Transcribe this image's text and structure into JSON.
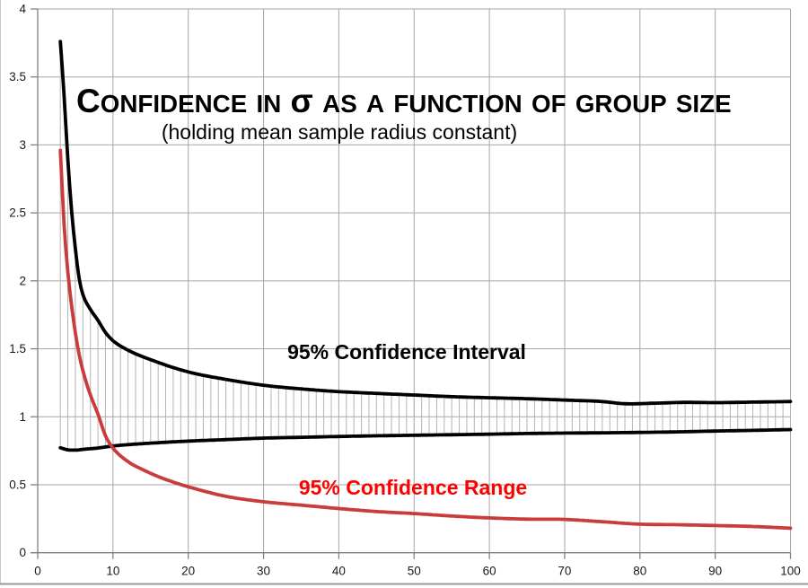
{
  "title": {
    "text": "Confidence in σ as a function of group size",
    "subtitle": "(holding mean sample radius constant)"
  },
  "annotations": {
    "interval_label": "95% Confidence Interval",
    "range_label": "95% Confidence Range"
  },
  "colors": {
    "background": "#ffffff",
    "curve_black": "#000000",
    "curve_red": "#c83c3c",
    "label_red": "#fe0000",
    "grid": "#a6a6a6",
    "axis": "#808080",
    "hatch": "#b5b5b5",
    "tick_text": "#1a1a1a",
    "frame": "#999999"
  },
  "chart_data": {
    "type": "line",
    "title": "Confidence in σ as a function of group size",
    "subtitle": "(holding mean sample radius constant)",
    "xlabel": "",
    "ylabel": "",
    "xlim": [
      0,
      100
    ],
    "ylim": [
      0,
      4
    ],
    "grid": true,
    "legend_position": "inline-labels",
    "x_ticks": [
      0,
      10,
      20,
      30,
      40,
      50,
      60,
      70,
      80,
      90,
      100
    ],
    "x_tick_labels": [
      "0",
      "10",
      "20",
      "30",
      "40",
      "50",
      "60",
      "70",
      "80",
      "90",
      "100"
    ],
    "y_ticks": [
      0,
      0.5,
      1,
      1.5,
      2,
      2.5,
      3,
      3.5,
      4
    ],
    "y_tick_labels": [
      "0",
      "0.5",
      "1",
      "1.5",
      "2",
      "2.5",
      "3",
      "3.5",
      "4"
    ],
    "hatch": {
      "from": 3,
      "to": 100,
      "step": 1,
      "lower": "ci_lower",
      "upper": "ci_upper"
    },
    "series": [
      {
        "name": "ci_upper",
        "label": "95% Confidence Interval (upper bound)",
        "color": "#000000",
        "points": [
          [
            3,
            3.76
          ],
          [
            3.5,
            3.37
          ],
          [
            4,
            2.9
          ],
          [
            4.5,
            2.52
          ],
          [
            5,
            2.24
          ],
          [
            5.5,
            2.02
          ],
          [
            6,
            1.9
          ],
          [
            7,
            1.79
          ],
          [
            8,
            1.71
          ],
          [
            9,
            1.62
          ],
          [
            10,
            1.56
          ],
          [
            12,
            1.49
          ],
          [
            15,
            1.42
          ],
          [
            20,
            1.33
          ],
          [
            25,
            1.275
          ],
          [
            30,
            1.232
          ],
          [
            35,
            1.205
          ],
          [
            40,
            1.185
          ],
          [
            45,
            1.172
          ],
          [
            50,
            1.16
          ],
          [
            55,
            1.148
          ],
          [
            60,
            1.14
          ],
          [
            65,
            1.133
          ],
          [
            70,
            1.123
          ],
          [
            75,
            1.112
          ],
          [
            78,
            1.096
          ],
          [
            82,
            1.1
          ],
          [
            86,
            1.106
          ],
          [
            90,
            1.104
          ],
          [
            95,
            1.108
          ],
          [
            100,
            1.112
          ]
        ]
      },
      {
        "name": "ci_lower",
        "label": "95% Confidence Interval (lower bound)",
        "color": "#000000",
        "points": [
          [
            3,
            0.772
          ],
          [
            4,
            0.757
          ],
          [
            5,
            0.755
          ],
          [
            6,
            0.76
          ],
          [
            7,
            0.765
          ],
          [
            8,
            0.77
          ],
          [
            9,
            0.778
          ],
          [
            10,
            0.785
          ],
          [
            12,
            0.795
          ],
          [
            15,
            0.806
          ],
          [
            20,
            0.821
          ],
          [
            25,
            0.832
          ],
          [
            30,
            0.843
          ],
          [
            35,
            0.849
          ],
          [
            40,
            0.855
          ],
          [
            45,
            0.86
          ],
          [
            50,
            0.864
          ],
          [
            55,
            0.868
          ],
          [
            60,
            0.872
          ],
          [
            65,
            0.877
          ],
          [
            70,
            0.88
          ],
          [
            75,
            0.882
          ],
          [
            80,
            0.885
          ],
          [
            85,
            0.889
          ],
          [
            90,
            0.895
          ],
          [
            95,
            0.9
          ],
          [
            100,
            0.906
          ]
        ]
      },
      {
        "name": "range",
        "label": "95% Confidence Range",
        "color": "#c83c3c",
        "points": [
          [
            3,
            2.96
          ],
          [
            3.5,
            2.42
          ],
          [
            4,
            2.07
          ],
          [
            4.5,
            1.82
          ],
          [
            5,
            1.62
          ],
          [
            5.5,
            1.46
          ],
          [
            6,
            1.34
          ],
          [
            7,
            1.16
          ],
          [
            8,
            1.02
          ],
          [
            9,
            0.86
          ],
          [
            10,
            0.77
          ],
          [
            12,
            0.67
          ],
          [
            14,
            0.61
          ],
          [
            16,
            0.56
          ],
          [
            18,
            0.52
          ],
          [
            20,
            0.485
          ],
          [
            25,
            0.415
          ],
          [
            30,
            0.375
          ],
          [
            35,
            0.35
          ],
          [
            40,
            0.325
          ],
          [
            45,
            0.303
          ],
          [
            50,
            0.288
          ],
          [
            55,
            0.27
          ],
          [
            60,
            0.256
          ],
          [
            65,
            0.247
          ],
          [
            70,
            0.245
          ],
          [
            75,
            0.228
          ],
          [
            80,
            0.21
          ],
          [
            85,
            0.206
          ],
          [
            90,
            0.2
          ],
          [
            95,
            0.193
          ],
          [
            100,
            0.18
          ]
        ]
      }
    ]
  }
}
